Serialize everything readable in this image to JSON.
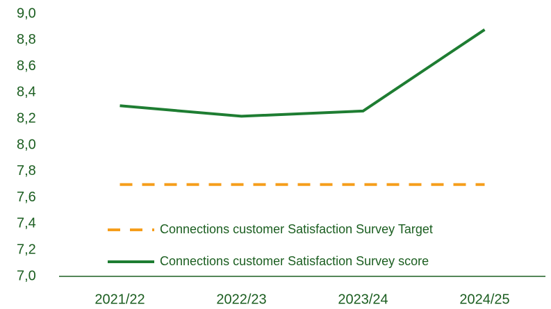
{
  "chart_data": {
    "type": "line",
    "categories": [
      "2021/22",
      "2022/23",
      "2023/24",
      "2024/25"
    ],
    "series": [
      {
        "name": "Connections customer Satisfaction Survey Target",
        "color": "#f59e1b",
        "style": "dashed",
        "values": [
          7.7,
          7.7,
          7.7,
          7.7
        ]
      },
      {
        "name": "Connections customer Satisfaction Survey score",
        "color": "#1e7d32",
        "style": "solid",
        "values": [
          8.3,
          8.22,
          8.26,
          8.88
        ]
      }
    ],
    "ylim": [
      7.0,
      9.0
    ],
    "yticks": [
      {
        "value": 7.0,
        "label": "7,0"
      },
      {
        "value": 7.2,
        "label": "7,2"
      },
      {
        "value": 7.4,
        "label": "7,4"
      },
      {
        "value": 7.6,
        "label": "7,6"
      },
      {
        "value": 7.8,
        "label": "7,8"
      },
      {
        "value": 8.0,
        "label": "8,0"
      },
      {
        "value": 8.2,
        "label": "8,2"
      },
      {
        "value": 8.4,
        "label": "8,4"
      },
      {
        "value": 8.6,
        "label": "8,6"
      },
      {
        "value": 8.8,
        "label": "8,8"
      },
      {
        "value": 9.0,
        "label": "9,0"
      }
    ],
    "grid": false,
    "legend": "lower-left"
  }
}
